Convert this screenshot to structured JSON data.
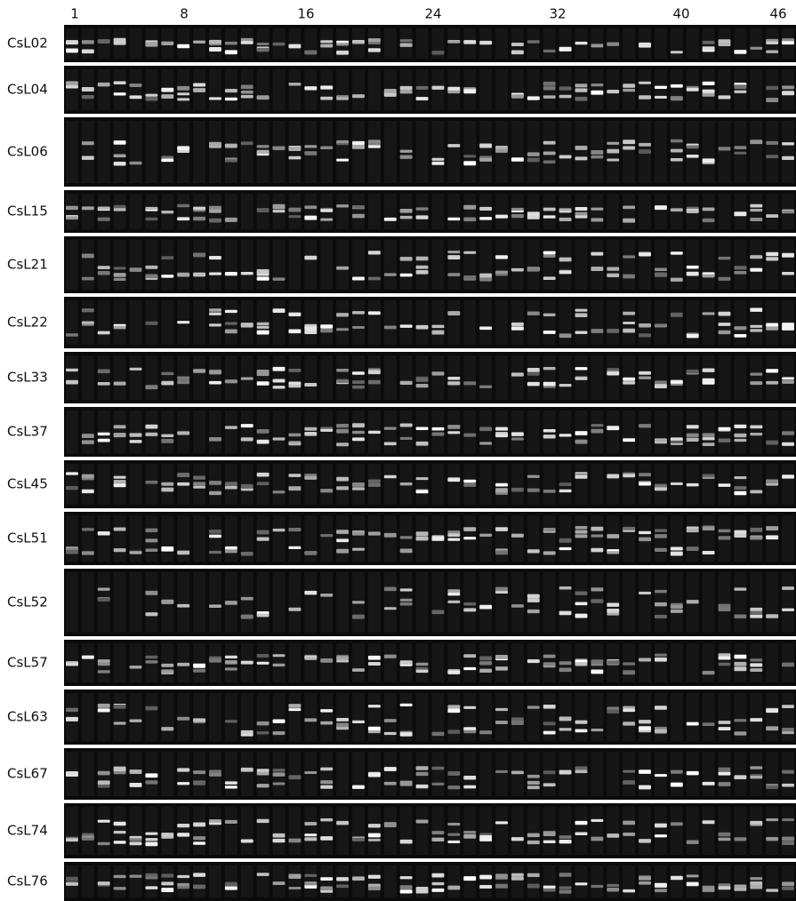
{
  "lane_numbers": [
    "1",
    "8",
    "16",
    "24",
    "32",
    "40",
    "46"
  ],
  "markers": [
    "CsL02",
    "CsL04",
    "CsL06",
    "CsL15",
    "CsL21",
    "CsL22",
    "CsL33",
    "CsL37",
    "CsL45",
    "CsL51",
    "CsL52",
    "CsL57",
    "CsL63",
    "CsL67",
    "CsL74",
    "CsL76"
  ]
}
